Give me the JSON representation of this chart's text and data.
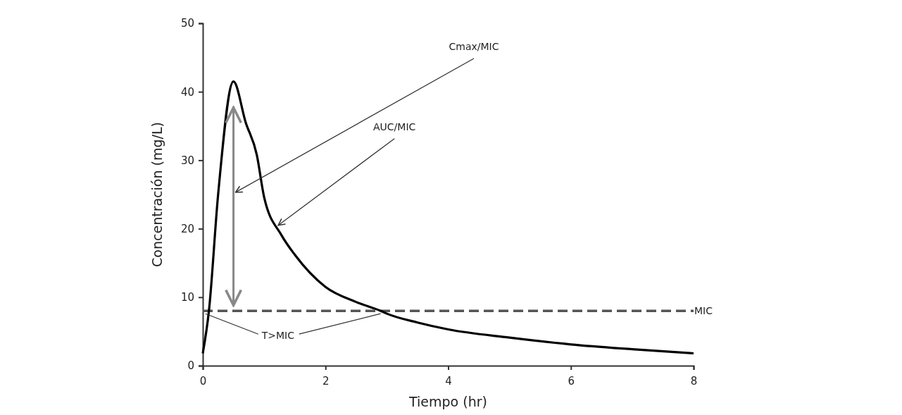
{
  "chart_data": {
    "type": "line",
    "xlabel": "Tiempo (hr)",
    "ylabel": "Concentración (mg/L)",
    "xlim": [
      0,
      8
    ],
    "xticks": [
      0,
      2,
      4,
      6,
      8
    ],
    "ylim": [
      0,
      50
    ],
    "yticks": [
      0,
      10,
      20,
      30,
      40,
      50
    ],
    "x": [
      0,
      0.1,
      0.25,
      0.5,
      0.7,
      0.88,
      1,
      1.28,
      1.5,
      2,
      2.5,
      2.9,
      3,
      3.5,
      4,
      5,
      6,
      7,
      8
    ],
    "series": [
      {
        "color": "#000000",
        "values": [
          1.8,
          8,
          25,
          41.5,
          35.5,
          30.8,
          24.6,
          19.1,
          16.2,
          11.5,
          9.3,
          8,
          7.6,
          6.3,
          5.3,
          4.1,
          3.1,
          2.4,
          1.8
        ]
      }
    ],
    "ref_lines": [
      {
        "axis": "y",
        "value": 8,
        "label": "MIC",
        "color": "#555555",
        "line_style": "dashed"
      }
    ],
    "annotations": [
      "Cmax/MIC",
      {
        "text": "AUC/MIC",
        "x": 1.23,
        "y": 20.5
      },
      {
        "text": "T>MIC",
        "x": 1.57,
        "y": 8
      }
    ],
    "grid": false,
    "marker": "none",
    "line_style": "solid"
  }
}
